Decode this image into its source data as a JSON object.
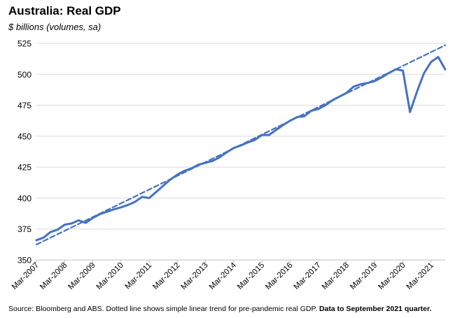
{
  "chart_data": {
    "type": "line",
    "title": "Australia: Real GDP",
    "subtitle": "$ billions (volumes, sa)",
    "xlabel": "",
    "ylabel": "",
    "ylim": [
      350,
      525
    ],
    "yticks": [
      350,
      375,
      400,
      425,
      450,
      475,
      500,
      525
    ],
    "xtick_labels": [
      "Mar-2007",
      "Mar-2008",
      "Mar-2009",
      "Mar-2010",
      "Mar-2011",
      "Mar-2012",
      "Mar-2013",
      "Mar-2014",
      "Mar-2015",
      "Mar-2016",
      "Mar-2017",
      "Mar-2018",
      "Mar-2019",
      "Mar-2020",
      "Mar-2021"
    ],
    "grid": "horizontal",
    "series": [
      {
        "style": "solid",
        "color": "#4472C4",
        "x": [
          "Mar-2007",
          "Jun-2007",
          "Sep-2007",
          "Dec-2007",
          "Mar-2008",
          "Jun-2008",
          "Sep-2008",
          "Dec-2008",
          "Mar-2009",
          "Jun-2009",
          "Sep-2009",
          "Dec-2009",
          "Mar-2010",
          "Jun-2010",
          "Sep-2010",
          "Dec-2010",
          "Mar-2011",
          "Jun-2011",
          "Sep-2011",
          "Dec-2011",
          "Mar-2012",
          "Jun-2012",
          "Sep-2012",
          "Dec-2012",
          "Mar-2013",
          "Jun-2013",
          "Sep-2013",
          "Dec-2013",
          "Mar-2014",
          "Jun-2014",
          "Sep-2014",
          "Dec-2014",
          "Mar-2015",
          "Jun-2015",
          "Sep-2015",
          "Dec-2015",
          "Mar-2016",
          "Jun-2016",
          "Sep-2016",
          "Dec-2016",
          "Mar-2017",
          "Jun-2017",
          "Sep-2017",
          "Dec-2017",
          "Mar-2018",
          "Jun-2018",
          "Sep-2018",
          "Dec-2018",
          "Mar-2019",
          "Jun-2019",
          "Sep-2019",
          "Dec-2019",
          "Mar-2020",
          "Jun-2020",
          "Sep-2020",
          "Dec-2020",
          "Mar-2021",
          "Jun-2021",
          "Sep-2021"
        ],
        "values": [
          366,
          368,
          372.5,
          374.5,
          378.5,
          379.5,
          382,
          380,
          384,
          387,
          389,
          391,
          392.5,
          394.5,
          397,
          401,
          400,
          405,
          410,
          415,
          419,
          422,
          424,
          427,
          428.5,
          430,
          433,
          437,
          440.5,
          442.5,
          445,
          447,
          451,
          451,
          455,
          459,
          462.5,
          465.5,
          466,
          470.5,
          472,
          475,
          479,
          482,
          485,
          490,
          492,
          493,
          494.5,
          497.5,
          501,
          504,
          503,
          469.5,
          486,
          501,
          510,
          514,
          504
        ]
      },
      {
        "style": "dashed",
        "color": "#4472C4",
        "x": [
          "Mar-2007",
          "Sep-2021"
        ],
        "values": [
          362.5,
          523.5
        ]
      }
    ]
  },
  "footer": {
    "source": "Source: Bloomberg and ABS. Dotted line shows simple linear trend for pre-pandemic real GDP.",
    "note": "Data to September 2021 quarter."
  }
}
